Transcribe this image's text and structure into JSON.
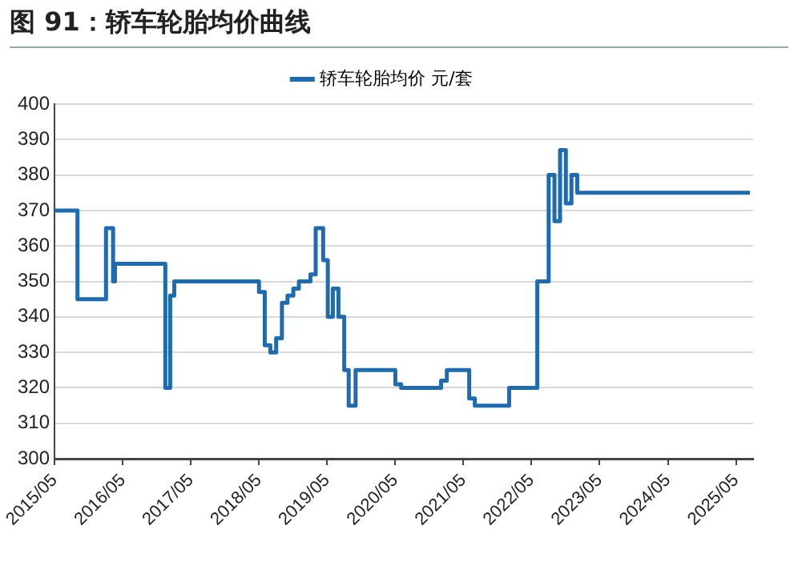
{
  "chart_data": {
    "type": "step",
    "title": "图 91：轿车轮胎均价曲线",
    "legend": "top",
    "grid": "y",
    "marker": "none",
    "xlim": [
      "2015-05",
      "2025-08"
    ],
    "xticks": [
      {
        "value": "2015-05",
        "label": "2015/05"
      },
      {
        "value": "2016-05",
        "label": "2016/05"
      },
      {
        "value": "2017-05",
        "label": "2017/05"
      },
      {
        "value": "2018-05",
        "label": "2018/05"
      },
      {
        "value": "2019-05",
        "label": "2019/05"
      },
      {
        "value": "2020-05",
        "label": "2020/05"
      },
      {
        "value": "2021-05",
        "label": "2021/05"
      },
      {
        "value": "2022-05",
        "label": "2022/05"
      },
      {
        "value": "2023-05",
        "label": "2023/05"
      },
      {
        "value": "2024-05",
        "label": "2024/05"
      },
      {
        "value": "2025-05",
        "label": "2025/05"
      }
    ],
    "ylim": [
      300,
      400
    ],
    "yticks": [
      300,
      310,
      320,
      330,
      340,
      350,
      360,
      370,
      380,
      390,
      400
    ],
    "x": [
      "2015-05-01",
      "2015-09-01",
      "2016-02-01",
      "2016-03-10",
      "2016-03-20",
      "2016-12-15",
      "2017-01-10",
      "2017-02-01",
      "2018-05-01",
      "2018-06-01",
      "2018-07-01",
      "2018-08-01",
      "2018-09-01",
      "2018-10-01",
      "2018-11-01",
      "2018-12-01",
      "2019-02-01",
      "2019-03-01",
      "2019-04-10",
      "2019-05-05",
      "2019-06-01",
      "2019-07-01",
      "2019-08-01",
      "2019-08-25",
      "2019-10-01",
      "2020-05-01",
      "2020-06-01",
      "2021-01-01",
      "2021-02-01",
      "2021-06-01",
      "2021-07-01",
      "2022-01-01",
      "2022-06-01",
      "2022-08-01",
      "2022-09-01",
      "2022-10-01",
      "2022-11-01",
      "2022-12-01",
      "2023-01-01",
      "2025-07-15"
    ],
    "series": [
      {
        "name": "轿车轮胎均价 元/套",
        "color": "#1f6bb0",
        "values": [
          370,
          345,
          365,
          350,
          355,
          320,
          346,
          350,
          347,
          332,
          330,
          334,
          344,
          346,
          348,
          350,
          352,
          365,
          356,
          340,
          348,
          340,
          325,
          315,
          325,
          321,
          320,
          322,
          325,
          317,
          315,
          320,
          350,
          380,
          367,
          387,
          372,
          380,
          375,
          375
        ]
      }
    ]
  }
}
